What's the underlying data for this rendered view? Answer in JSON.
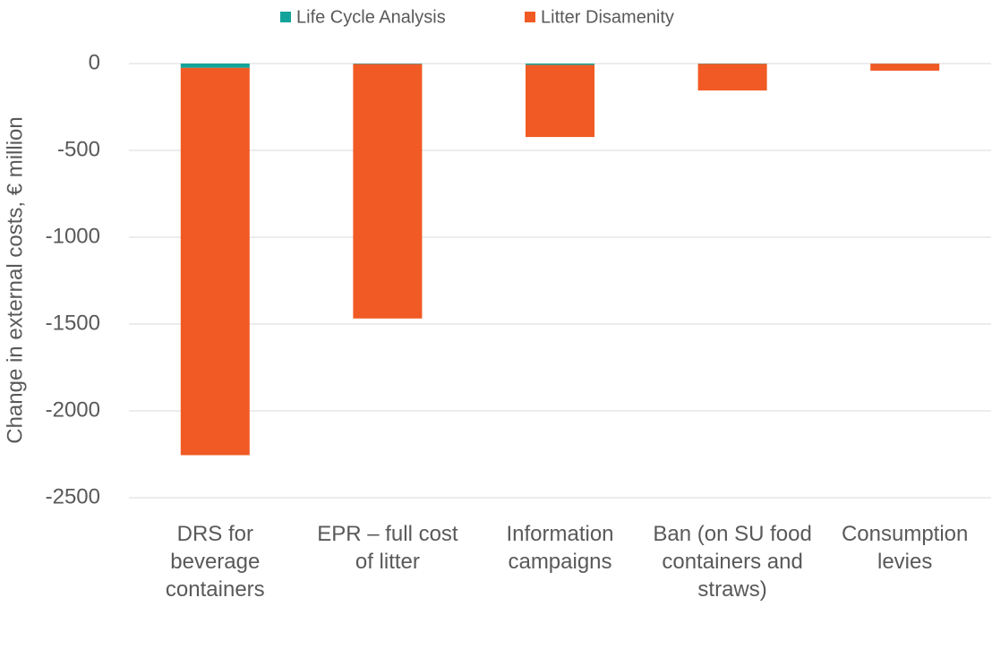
{
  "chart_data": {
    "type": "stacked_bar",
    "y_label": "Change in external costs, € million",
    "categories": [
      "DRS for beverage containers",
      "EPR – full cost of litter",
      "Information campaigns",
      "Ban (on SU food containers and straws)",
      "Consumption levies"
    ],
    "series": [
      {
        "name": "Life Cycle Analysis",
        "color": "#14a39a",
        "values": [
          -25,
          -3,
          -8,
          -2,
          -1
        ]
      },
      {
        "name": "Litter Disamenity",
        "color": "#f15a24",
        "values": [
          -2230,
          -1465,
          -415,
          -153,
          -40
        ]
      }
    ],
    "ylim": [
      -2500,
      0
    ],
    "yticks": [
      0,
      -500,
      -1000,
      -1500,
      -2000,
      -2500
    ],
    "grid": true,
    "legend": "top"
  }
}
